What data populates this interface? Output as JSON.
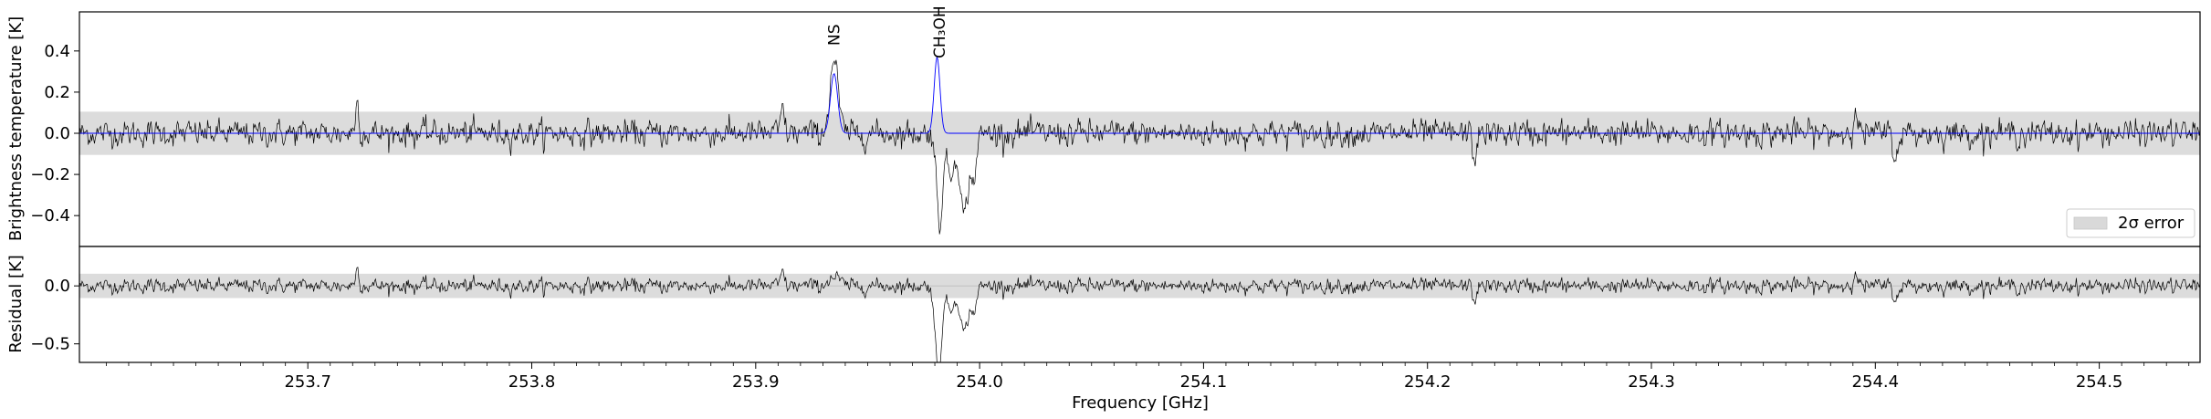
{
  "chart_data": [
    {
      "type": "line",
      "panel": "spectrum",
      "ylabel": "Brightness temperature [K]",
      "xlim": [
        253.598,
        254.545
      ],
      "ylim": [
        -0.55,
        0.59
      ],
      "yticks": [
        -0.4,
        -0.2,
        0.0,
        0.2,
        0.4
      ],
      "ytick_labels": [
        "−0.4",
        "−0.2",
        "0.0",
        "0.2",
        "0.4"
      ],
      "error_band": [
        -0.105,
        0.105
      ],
      "legend": {
        "label": "2σ error",
        "placement": "lower-right"
      },
      "line_labels": [
        {
          "text": "NS",
          "x": 253.935
        },
        {
          "text": "CH₃OH",
          "x": 253.982
        }
      ],
      "series": [
        {
          "role": "observed",
          "color": "#000000",
          "noise_sigma": 0.045,
          "features": [
            {
              "center": 253.935,
              "peak": 0.36,
              "width": 0.0018
            },
            {
              "center": 253.982,
              "peak": -0.45,
              "width": 0.0012
            },
            {
              "center": 253.987,
              "peak": -0.2,
              "width": 0.002
            },
            {
              "center": 253.993,
              "peak": -0.4,
              "width": 0.0015
            },
            {
              "center": 253.997,
              "peak": -0.22,
              "width": 0.0015
            }
          ],
          "spikes": [
            {
              "x": 253.722,
              "y": 0.15
            },
            {
              "x": 253.912,
              "y": 0.12
            },
            {
              "x": 254.391,
              "y": 0.15
            },
            {
              "x": 254.409,
              "y": -0.15
            },
            {
              "x": 254.221,
              "y": -0.13
            }
          ]
        },
        {
          "role": "model",
          "color": "#0000ff",
          "features": [
            {
              "center": 253.935,
              "peak": 0.29,
              "width": 0.0016
            },
            {
              "center": 253.981,
              "peak": 0.37,
              "width": 0.0013
            }
          ]
        }
      ]
    },
    {
      "type": "line",
      "panel": "residual",
      "xlabel": "Frequency [GHz]",
      "ylabel": "Residual [K]",
      "xlim": [
        253.598,
        254.545
      ],
      "ylim": [
        -0.66,
        0.34
      ],
      "yticks": [
        -0.5,
        0.0
      ],
      "ytick_labels": [
        "−0.5",
        "0.0"
      ],
      "xticks": [
        253.7,
        253.8,
        253.9,
        254.0,
        254.1,
        254.2,
        254.3,
        254.4,
        254.5
      ],
      "xtick_labels": [
        "253.7",
        "253.8",
        "253.9",
        "254.0",
        "254.1",
        "254.2",
        "254.3",
        "254.4",
        "254.5"
      ],
      "error_band": [
        -0.105,
        0.105
      ],
      "series": [
        {
          "role": "residual",
          "color": "#000000",
          "definition": "observed minus model"
        }
      ]
    }
  ]
}
